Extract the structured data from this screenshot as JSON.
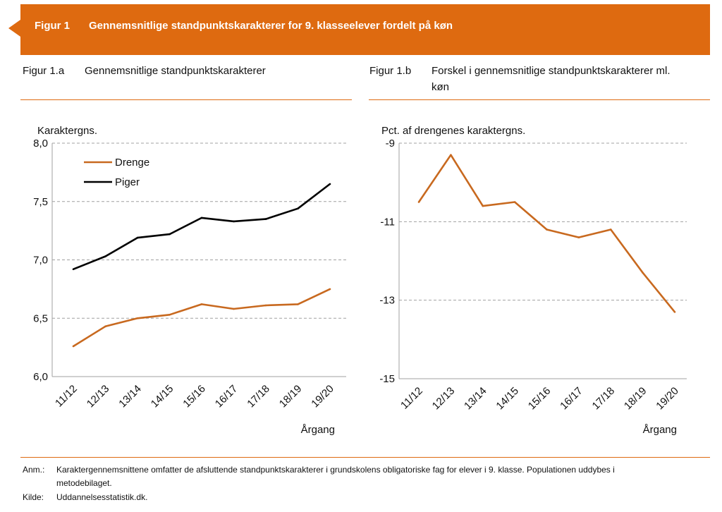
{
  "header": {
    "figure_label": "Figur 1",
    "title": "Gennemsnitlige standpunktskarakterer for 9. klasseelever fordelt på køn",
    "color": "#DE6A10"
  },
  "panel_a": {
    "figure_label": "Figur 1.a",
    "title": "Gennemsnitlige standpunktskarakterer"
  },
  "panel_b": {
    "figure_label": "Figur 1.b",
    "title_line1": "Forskel i gennemsnitlige standpunktskarakterer ml.",
    "title_line2": "køn"
  },
  "notes": {
    "anm_label": "Anm.:",
    "anm_line1": "Karaktergennemsnittene omfatter de afsluttende standpunktskarakterer i grundskolens obligatoriske fag for elever i 9. klasse. Populationen uddybes i",
    "anm_line2": "metodebilaget.",
    "kilde_label": "Kilde:",
    "kilde_text": "Uddannelsesstatistik.dk."
  },
  "chart_data": [
    {
      "type": "line",
      "categories": [
        "11/12",
        "12/13",
        "13/14",
        "14/15",
        "15/16",
        "16/17",
        "17/18",
        "18/19",
        "19/20"
      ],
      "ylabel": "Karaktergns.",
      "xlabel": "Årgang",
      "ylim": [
        6.0,
        8.0
      ],
      "yticks": [
        6.0,
        6.5,
        7.0,
        7.5,
        8.0
      ],
      "ytick_labels": [
        "6,0",
        "6,5",
        "7,0",
        "7,5",
        "8,0"
      ],
      "grid": true,
      "legend": "top-left",
      "series": [
        {
          "name": "Drenge",
          "color": "#C8691F",
          "values": [
            6.26,
            6.43,
            6.5,
            6.53,
            6.62,
            6.58,
            6.61,
            6.62,
            6.75
          ]
        },
        {
          "name": "Piger",
          "color": "#000000",
          "values": [
            6.92,
            7.03,
            7.19,
            7.22,
            7.36,
            7.33,
            7.35,
            7.44,
            7.65
          ]
        }
      ]
    },
    {
      "type": "line",
      "categories": [
        "11/12",
        "12/13",
        "13/14",
        "14/15",
        "15/16",
        "16/17",
        "17/18",
        "18/19",
        "19/20"
      ],
      "ylabel": "Pct. af drengenes karaktergns.",
      "xlabel": "Årgang",
      "ylim": [
        -15,
        -9
      ],
      "yticks": [
        -15,
        -13,
        -11,
        -9
      ],
      "ytick_labels": [
        "-15",
        "-13",
        "-11",
        "-9"
      ],
      "grid": true,
      "series": [
        {
          "color": "#C8691F",
          "values": [
            -10.5,
            -9.3,
            -10.6,
            -10.5,
            -11.2,
            -11.4,
            -11.2,
            -12.3,
            -13.3
          ]
        }
      ]
    }
  ]
}
